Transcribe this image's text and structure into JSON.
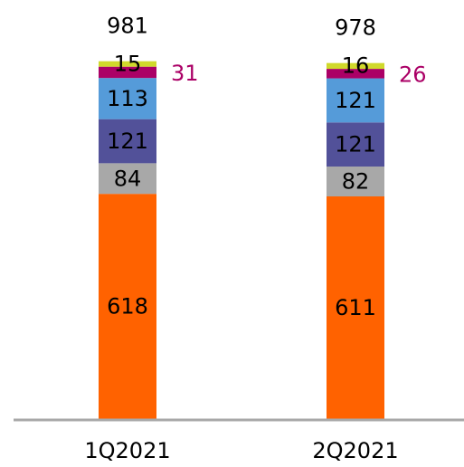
{
  "chart_data": {
    "type": "stacked-bar",
    "categories": [
      "1Q2021",
      "2Q2021"
    ],
    "totals": [
      981,
      978
    ],
    "series": [
      {
        "color": "#ff6200",
        "values": [
          618,
          611
        ]
      },
      {
        "color": "#a8a8a8",
        "values": [
          84,
          82
        ]
      },
      {
        "color": "#525199",
        "values": [
          121,
          121
        ]
      },
      {
        "color": "#559bd9",
        "values": [
          113,
          121
        ]
      },
      {
        "color": "#ab0066",
        "values": [
          31,
          26
        ]
      },
      {
        "color": "#d0d92b",
        "values": [
          15,
          16
        ]
      }
    ],
    "ylim": [
      0,
      1150
    ]
  }
}
